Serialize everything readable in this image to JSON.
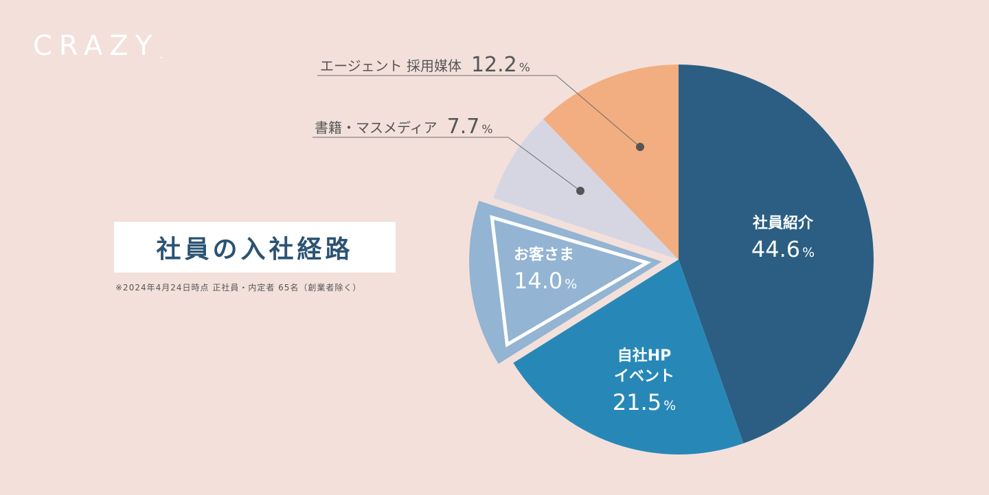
{
  "logo": {
    "text": "CRAZY",
    "mark": "™"
  },
  "title": "社員の入社経路",
  "note": "※2024年4月24日時点 正社員・内定者 65名（創業者除く）",
  "colors": {
    "background": "#f3e0db",
    "title_text": "#2b5374",
    "callout_line": "#6b6b6b"
  },
  "chart_data": {
    "type": "pie",
    "unit": "%",
    "slices": [
      {
        "name": "社員紹介",
        "label_lines": [
          "社員紹介"
        ],
        "value": 44.6,
        "value_text": "44.6",
        "color": "#2b5e82",
        "label_color": "#ffffff",
        "label_position": "inside"
      },
      {
        "name": "自社HP イベント",
        "label_lines": [
          "自社HP",
          "イベント"
        ],
        "value": 21.5,
        "value_text": "21.5",
        "color": "#2788b8",
        "label_color": "#ffffff",
        "label_position": "inside"
      },
      {
        "name": "お客さま",
        "label_lines": [
          "お客さま"
        ],
        "value": 14.0,
        "value_text": "14.0",
        "color": "#93b4d2",
        "label_color": "#ffffff",
        "label_position": "inside",
        "highlighted": true
      },
      {
        "name": "書籍・マスメディア",
        "label_lines": [
          "書籍・マスメディア"
        ],
        "value": 7.7,
        "value_text": "7.7",
        "color": "#d6d6e3",
        "label_color": "#555555",
        "label_position": "callout"
      },
      {
        "name": "エージェント 採用媒体",
        "label_lines": [
          "エージェント 採用媒体"
        ],
        "value": 12.2,
        "value_text": "12.2",
        "color": "#f2ae80",
        "label_color": "#555555",
        "label_position": "callout"
      }
    ]
  }
}
